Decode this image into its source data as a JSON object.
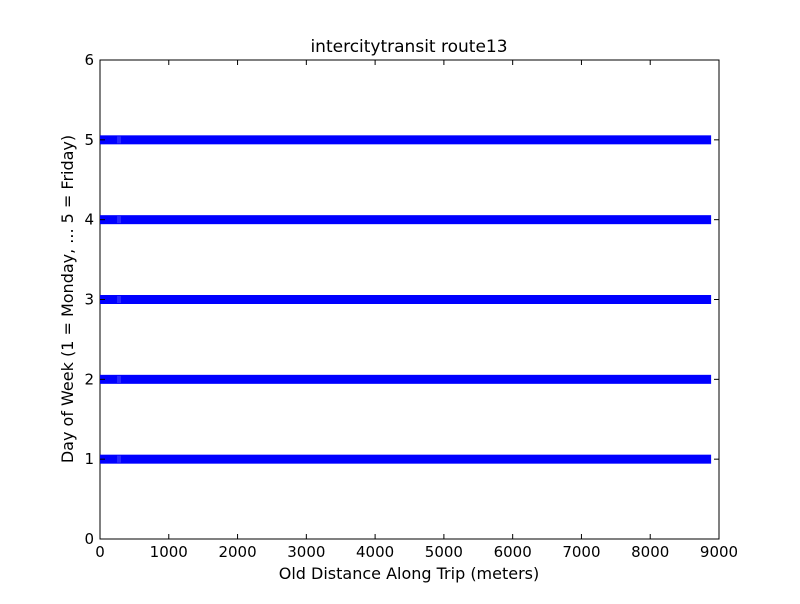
{
  "chart_data": {
    "type": "scatter",
    "title": "intercitytransit route13",
    "xlabel": "Old Distance Along Trip (meters)",
    "ylabel": "Day of Week (1 = Monday, ... 5 = Friday)",
    "xlim": [
      0,
      9000
    ],
    "ylim": [
      0,
      6
    ],
    "xticks": [
      0,
      1000,
      2000,
      3000,
      4000,
      5000,
      6000,
      7000,
      8000,
      9000
    ],
    "yticks": [
      0,
      1,
      2,
      3,
      4,
      5,
      6
    ],
    "grid": false,
    "legend": "none",
    "marker": "square",
    "series": [
      {
        "y": 1,
        "x_range": [
          0,
          8820
        ],
        "color": "#0000ff"
      },
      {
        "y": 2,
        "x_range": [
          0,
          8820
        ],
        "color": "#0000ff"
      },
      {
        "y": 3,
        "x_range": [
          0,
          8820
        ],
        "color": "#0000ff"
      },
      {
        "y": 4,
        "x_range": [
          0,
          8820
        ],
        "color": "#0000ff"
      },
      {
        "y": 5,
        "x_range": [
          0,
          8820
        ],
        "color": "#0000ff"
      }
    ]
  }
}
